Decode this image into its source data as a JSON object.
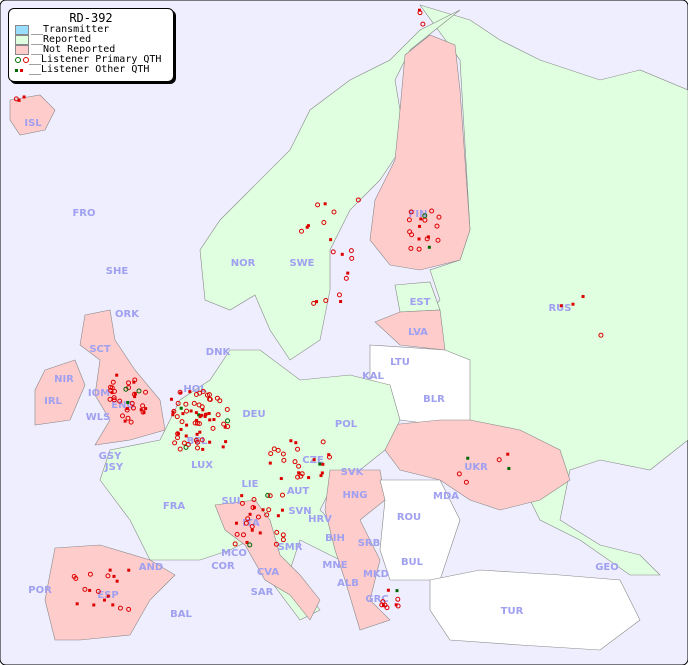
{
  "title": "RD-392",
  "legend": {
    "transmitter": "__Transmitter",
    "reported": "__Reported",
    "not_reported": "__Not Reported",
    "primary": "__Listener Primary QTH",
    "other": "__Listener Other QTH"
  },
  "colors": {
    "sea": "#eeeeff",
    "transmitter": "#99ddff",
    "reported": "#e0ffe0",
    "not_reported": "#ffcccc",
    "unlisted": "#ffffff",
    "listener": "#dd0000",
    "listener_alt": "#006600",
    "label": "#a0a0f0"
  },
  "countries": {
    "ISL": "ISL",
    "FRO": "FRO",
    "SHE": "SHE",
    "ORK": "ORK",
    "NOR": "NOR",
    "SWE": "SWE",
    "FIN": "FIN",
    "EST": "EST",
    "LVA": "LVA",
    "RUS": "RUS",
    "LTU": "LTU",
    "KAL": "KAL",
    "BLR": "BLR",
    "DNK": "DNK",
    "HOL": "HOL",
    "POL": "POL",
    "DEU": "DEU",
    "BEL": "BEL",
    "LUX": "LUX",
    "CZE": "CZE",
    "SVK": "SVK",
    "UKR": "UKR",
    "HNG": "HNG",
    "AUT": "AUT",
    "SUI": "SUI",
    "LIE": "LIE",
    "FRA": "FRA",
    "MDA": "MDA",
    "ROU": "ROU",
    "SVN": "SVN",
    "HRV": "HRV",
    "BIH": "BIH",
    "SRB": "SRB",
    "BUL": "BUL",
    "MNE": "MNE",
    "MKD": "MKD",
    "ALB": "ALB",
    "GRC": "GRC",
    "TUR": "TUR",
    "GEO": "GEO",
    "ITA": "ITA",
    "SMR": "SMR",
    "MCO": "MCO",
    "COR": "COR",
    "CVA": "CVA",
    "SAR": "SAR",
    "AND": "AND",
    "ESP": "ESP",
    "POR": "POR",
    "BAL": "BAL",
    "IRL": "IRL",
    "NIR": "NIR",
    "IOM": "IOM",
    "WLS": "WLS",
    "ENG": "ENG",
    "SCT": "SCT",
    "GSY": "GSY",
    "JSY": "JSY"
  }
}
